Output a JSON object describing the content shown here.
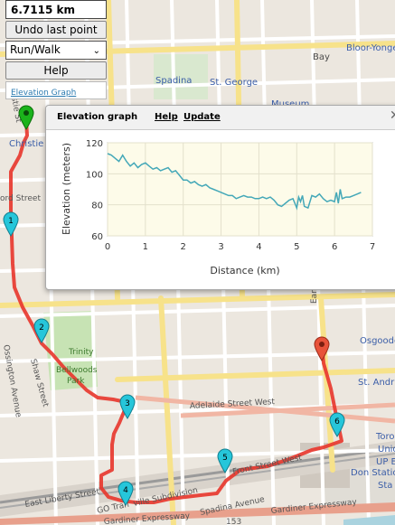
{
  "panel": {
    "distance": "6.7115 km",
    "undo_label": "Undo last point",
    "mode_value": "Run/Walk",
    "help_label": "Help",
    "elevation_link": "Elevation Graph"
  },
  "dialog": {
    "title": "Elevation graph",
    "help_link": "Help",
    "update_link": "Update"
  },
  "map_labels": {
    "bloor_yonge": "Bloor-Yonge",
    "bay": "Bay",
    "spadina": "Spadina",
    "st_george": "St. George",
    "museum": "Museum",
    "christie": "Christie",
    "ord_street": "ord Street",
    "osgoode": "Osgoode",
    "st_andrew": "St. Andr",
    "adelaide": "Adelaide Street West",
    "front": "Front Street West",
    "trinity_1": "Trinity",
    "trinity_2": "Bellwoods",
    "trinity_3": "Park",
    "shaw": "Shaw Street",
    "ossington": "Ossington Avenue",
    "east_liberty": "East Liberty Street",
    "gardiner_1": "Gardiner Expressway",
    "gardiner_2": "Gardiner Expressway",
    "spadina_ave": "Spadina Avenue",
    "go_transit": "GO Tran",
    "ville_sub": "ville Subdivision",
    "hwy": "153",
    "union_1": "Toro",
    "union_2": "Union",
    "union_3": "UP E",
    "don": "Don Station",
    "sta": "Sta",
    "earl": "Earl Street",
    "christie_st": "Christie St"
  },
  "markers": [
    "1",
    "2",
    "3",
    "4",
    "5",
    "6"
  ],
  "colors": {
    "route": "#e8352b",
    "start_marker": "#1bb31b",
    "mid_marker": "#26c6da",
    "end_marker": "#e8533a",
    "chart_line": "#44a8b8",
    "chart_bg": "#fdfbe9"
  },
  "chart_data": {
    "type": "line",
    "title": "",
    "xlabel": "Distance (km)",
    "ylabel": "Elevation (meters)",
    "xlim": [
      0,
      7
    ],
    "ylim": [
      60,
      120
    ],
    "xticks": [
      0,
      1,
      2,
      3,
      4,
      5,
      6,
      7
    ],
    "yticks": [
      60,
      80,
      100,
      120
    ],
    "grid": true,
    "series": [
      {
        "x": [
          0,
          0.1,
          0.2,
          0.3,
          0.4,
          0.5,
          0.6,
          0.7,
          0.8,
          0.9,
          1.0,
          1.1,
          1.2,
          1.3,
          1.4,
          1.5,
          1.6,
          1.7,
          1.8,
          1.9,
          2.0,
          2.1,
          2.2,
          2.3,
          2.4,
          2.5,
          2.6,
          2.7,
          2.8,
          2.9,
          3.0,
          3.1,
          3.2,
          3.3,
          3.4,
          3.5,
          3.6,
          3.7,
          3.8,
          3.9,
          4.0,
          4.1,
          4.2,
          4.3,
          4.4,
          4.5,
          4.6,
          4.7,
          4.8,
          4.9,
          5.0,
          5.05,
          5.1,
          5.15,
          5.2,
          5.3,
          5.4,
          5.5,
          5.6,
          5.7,
          5.8,
          5.9,
          6.0,
          6.05,
          6.1,
          6.15,
          6.2,
          6.3,
          6.4,
          6.5,
          6.6,
          6.7
        ],
        "y": [
          113,
          112,
          110,
          108,
          112,
          108,
          105,
          107,
          104,
          106,
          107,
          105,
          103,
          104,
          102,
          103,
          104,
          101,
          102,
          99,
          96,
          96,
          94,
          95,
          93,
          92,
          93,
          91,
          90,
          89,
          88,
          87,
          86,
          86,
          84,
          85,
          86,
          85,
          85,
          84,
          84,
          85,
          84,
          85,
          83,
          80,
          79,
          81,
          83,
          84,
          78,
          85,
          82,
          86,
          79,
          78,
          86,
          85,
          87,
          84,
          82,
          83,
          82,
          88,
          81,
          90,
          84,
          85,
          85,
          86,
          87,
          88
        ]
      }
    ]
  }
}
